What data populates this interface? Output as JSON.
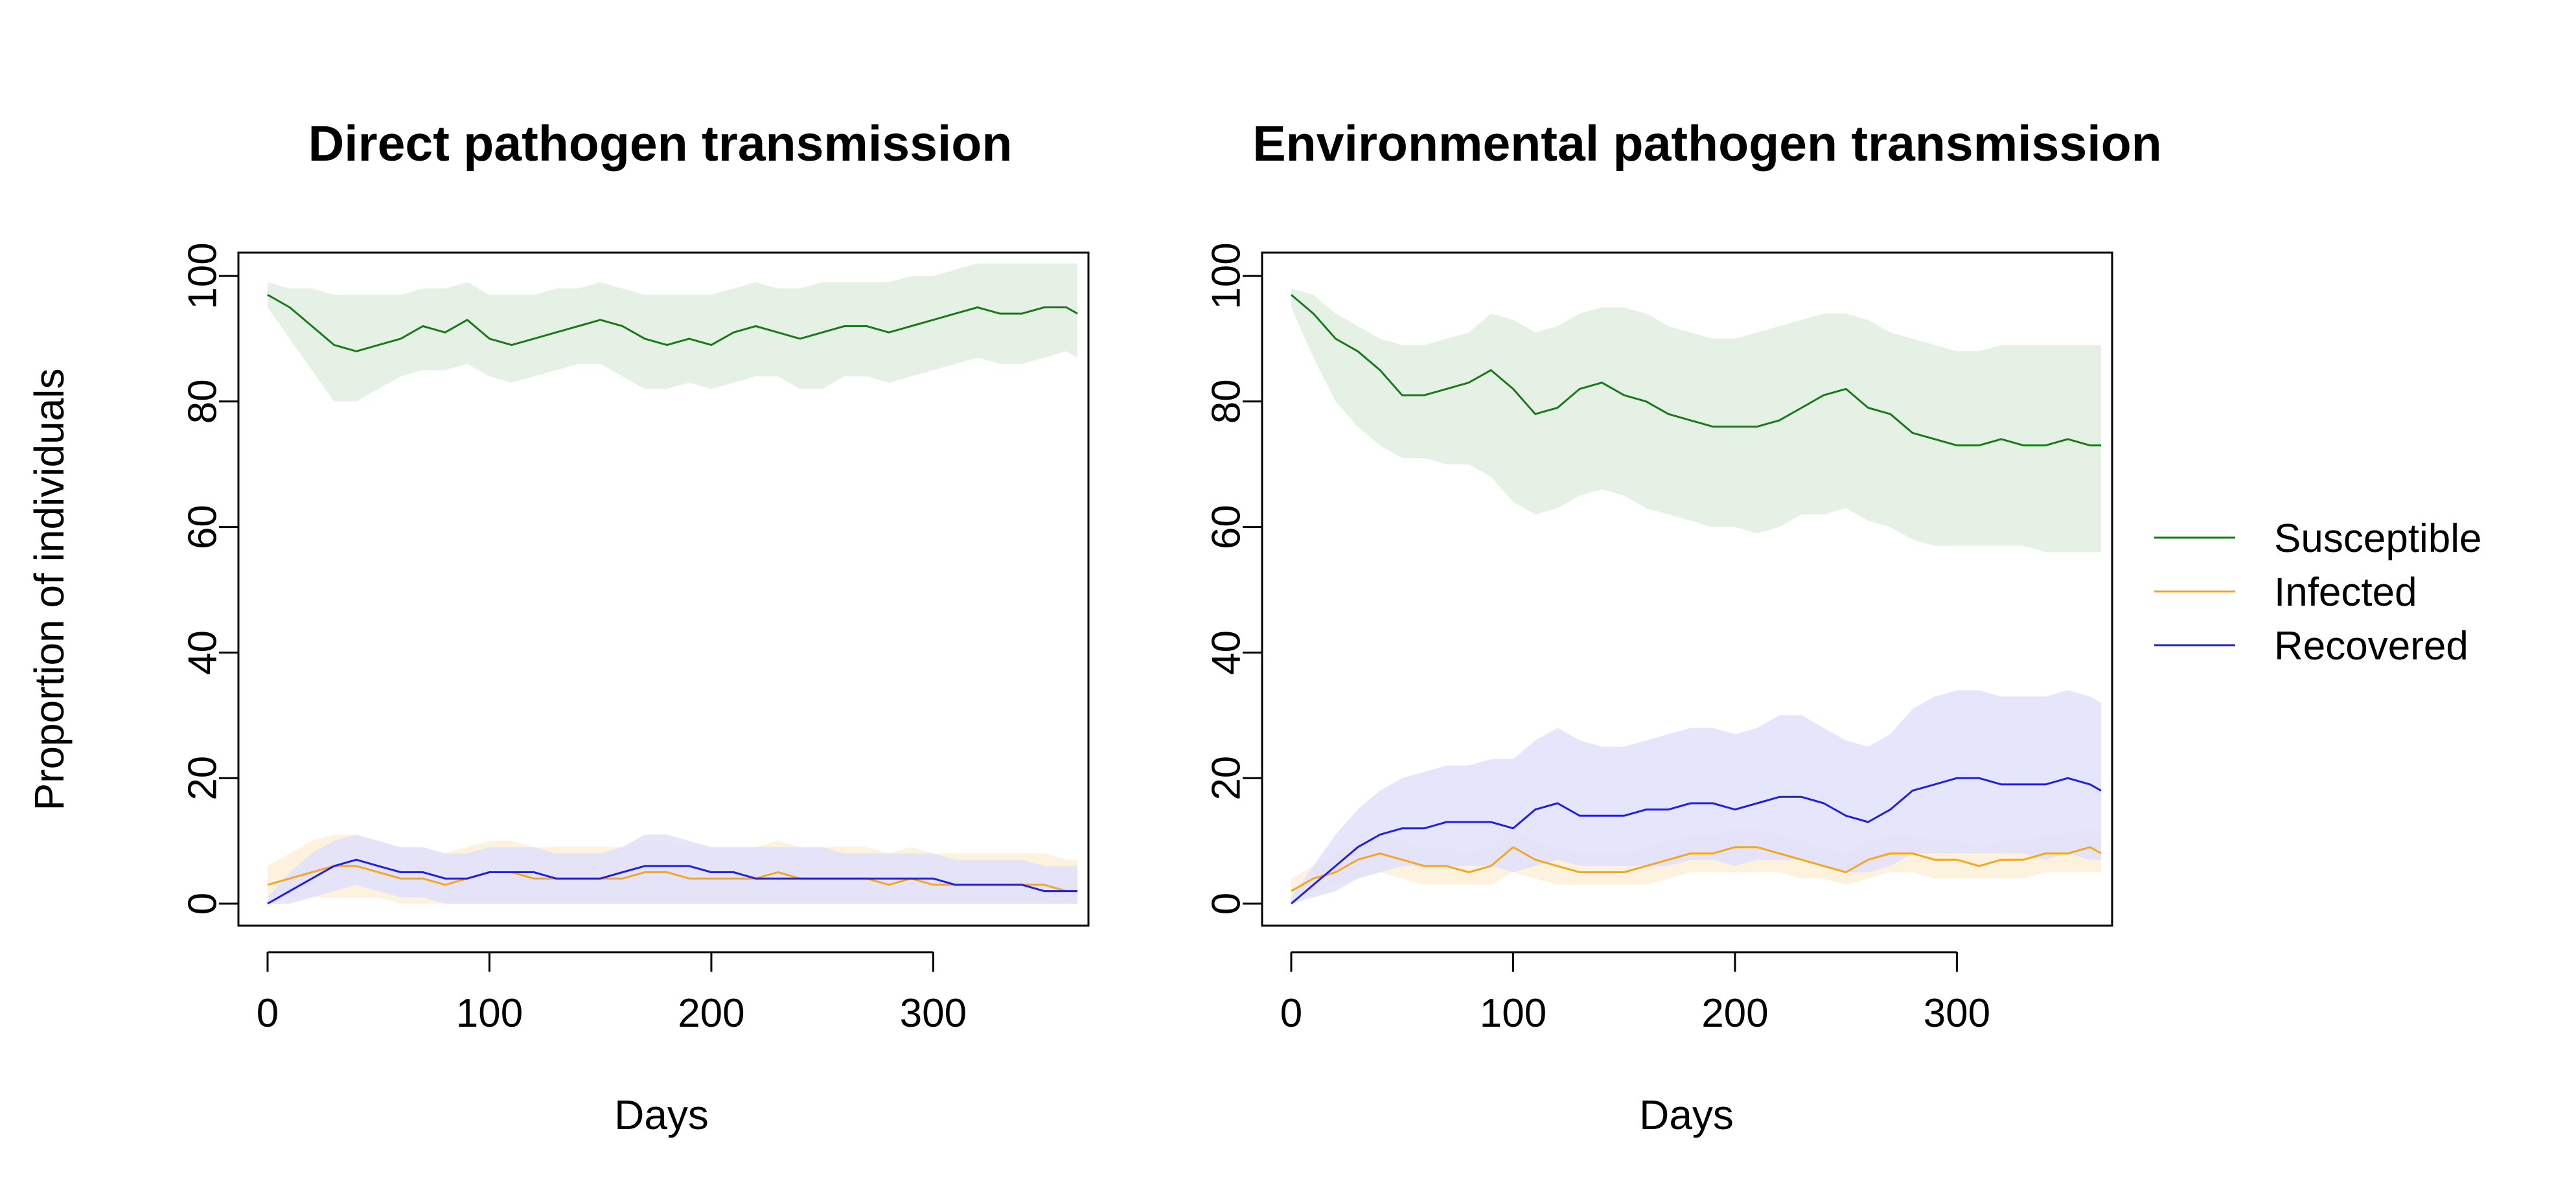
{
  "chart_data": [
    {
      "type": "line",
      "title": "Direct pathogen transmission",
      "xlabel": "Days",
      "ylabel": "Proportion of individuals",
      "xlim": [
        0,
        365
      ],
      "ylim": [
        0,
        100
      ],
      "xticks": [
        "0",
        "100",
        "200",
        "300"
      ],
      "yticks": [
        "0",
        "20",
        "40",
        "60",
        "80",
        "100"
      ],
      "bands": "shaded range around each series line",
      "series": [
        {
          "name": "Susceptible",
          "color": "#1a7a1a",
          "band_color": "#e2efe2",
          "x": [
            0,
            10,
            20,
            30,
            40,
            50,
            60,
            70,
            80,
            90,
            100,
            110,
            120,
            130,
            140,
            150,
            160,
            170,
            180,
            190,
            200,
            210,
            220,
            230,
            240,
            250,
            260,
            270,
            280,
            290,
            300,
            310,
            320,
            330,
            340,
            350,
            360,
            365
          ],
          "y": [
            97,
            95,
            92,
            89,
            88,
            89,
            90,
            92,
            91,
            93,
            90,
            89,
            90,
            91,
            92,
            93,
            92,
            90,
            89,
            90,
            89,
            91,
            92,
            91,
            90,
            91,
            92,
            92,
            91,
            92,
            93,
            94,
            95,
            94,
            94,
            95,
            95,
            94
          ],
          "lower": [
            95,
            90,
            85,
            80,
            80,
            82,
            84,
            85,
            85,
            86,
            84,
            83,
            84,
            85,
            86,
            86,
            84,
            82,
            82,
            83,
            82,
            83,
            84,
            84,
            82,
            82,
            84,
            84,
            83,
            84,
            85,
            86,
            87,
            86,
            86,
            87,
            88,
            87
          ],
          "upper": [
            99,
            98,
            98,
            97,
            97,
            97,
            97,
            98,
            98,
            99,
            97,
            97,
            97,
            98,
            98,
            99,
            98,
            97,
            97,
            97,
            97,
            98,
            99,
            98,
            98,
            99,
            99,
            99,
            99,
            100,
            100,
            101,
            102,
            102,
            102,
            102,
            102,
            102
          ]
        },
        {
          "name": "Infected",
          "color": "#f5a623",
          "band_color": "#fdf0d8",
          "x": [
            0,
            10,
            20,
            30,
            40,
            50,
            60,
            70,
            80,
            90,
            100,
            110,
            120,
            130,
            140,
            150,
            160,
            170,
            180,
            190,
            200,
            210,
            220,
            230,
            240,
            250,
            260,
            270,
            280,
            290,
            300,
            310,
            320,
            330,
            340,
            350,
            360,
            365
          ],
          "y": [
            3,
            4,
            5,
            6,
            6,
            5,
            4,
            4,
            3,
            4,
            5,
            5,
            4,
            4,
            4,
            4,
            4,
            5,
            5,
            4,
            4,
            4,
            4,
            5,
            4,
            4,
            4,
            4,
            3,
            4,
            3,
            3,
            3,
            3,
            3,
            3,
            2,
            2
          ],
          "lower": [
            1,
            1,
            1,
            1,
            1,
            1,
            0,
            0,
            0,
            0,
            0,
            0,
            0,
            0,
            0,
            0,
            0,
            0,
            0,
            0,
            0,
            0,
            0,
            0,
            0,
            0,
            0,
            0,
            0,
            0,
            0,
            0,
            0,
            0,
            0,
            0,
            0,
            0
          ],
          "upper": [
            6,
            8,
            10,
            11,
            11,
            10,
            9,
            9,
            8,
            9,
            10,
            10,
            9,
            9,
            9,
            9,
            9,
            10,
            10,
            9,
            9,
            9,
            9,
            10,
            9,
            9,
            9,
            9,
            8,
            9,
            8,
            8,
            8,
            8,
            8,
            8,
            7,
            7
          ]
        },
        {
          "name": "Recovered",
          "color": "#1f1fe6",
          "band_color": "#e0e0fc",
          "x": [
            0,
            10,
            20,
            30,
            40,
            50,
            60,
            70,
            80,
            90,
            100,
            110,
            120,
            130,
            140,
            150,
            160,
            170,
            180,
            190,
            200,
            210,
            220,
            230,
            240,
            250,
            260,
            270,
            280,
            290,
            300,
            310,
            320,
            330,
            340,
            350,
            360,
            365
          ],
          "y": [
            0,
            2,
            4,
            6,
            7,
            6,
            5,
            5,
            4,
            4,
            5,
            5,
            5,
            4,
            4,
            4,
            5,
            6,
            6,
            6,
            5,
            5,
            4,
            4,
            4,
            4,
            4,
            4,
            4,
            4,
            4,
            3,
            3,
            3,
            3,
            2,
            2,
            2
          ],
          "lower": [
            0,
            0,
            1,
            2,
            3,
            2,
            1,
            1,
            0,
            0,
            0,
            0,
            0,
            0,
            0,
            0,
            0,
            0,
            0,
            0,
            0,
            0,
            0,
            0,
            0,
            0,
            0,
            0,
            0,
            0,
            0,
            0,
            0,
            0,
            0,
            0,
            0,
            0
          ],
          "upper": [
            1,
            5,
            8,
            10,
            11,
            10,
            9,
            9,
            8,
            8,
            9,
            9,
            9,
            8,
            8,
            8,
            9,
            11,
            11,
            10,
            9,
            9,
            9,
            9,
            9,
            9,
            8,
            8,
            8,
            8,
            8,
            7,
            7,
            7,
            7,
            6,
            6,
            6
          ]
        }
      ]
    },
    {
      "type": "line",
      "title": "Environmental pathogen transmission",
      "xlabel": "Days",
      "ylabel": "",
      "xlim": [
        0,
        365
      ],
      "ylim": [
        0,
        100
      ],
      "xticks": [
        "0",
        "100",
        "200",
        "300"
      ],
      "yticks": [
        "0",
        "20",
        "40",
        "60",
        "80",
        "100"
      ],
      "bands": "shaded range around each series line",
      "series": [
        {
          "name": "Susceptible",
          "color": "#1a7a1a",
          "band_color": "#e2efe2",
          "x": [
            0,
            10,
            20,
            30,
            40,
            50,
            60,
            70,
            80,
            90,
            100,
            110,
            120,
            130,
            140,
            150,
            160,
            170,
            180,
            190,
            200,
            210,
            220,
            230,
            240,
            250,
            260,
            270,
            280,
            290,
            300,
            310,
            320,
            330,
            340,
            350,
            360,
            365
          ],
          "y": [
            97,
            94,
            90,
            88,
            85,
            81,
            81,
            82,
            83,
            85,
            82,
            78,
            79,
            82,
            83,
            81,
            80,
            78,
            77,
            76,
            76,
            76,
            77,
            79,
            81,
            82,
            79,
            78,
            75,
            74,
            73,
            73,
            74,
            73,
            73,
            74,
            73,
            73
          ],
          "lower": [
            95,
            87,
            80,
            76,
            73,
            71,
            71,
            70,
            70,
            68,
            64,
            62,
            63,
            65,
            66,
            65,
            63,
            62,
            61,
            60,
            60,
            59,
            60,
            62,
            62,
            63,
            61,
            60,
            58,
            57,
            57,
            57,
            57,
            57,
            56,
            56,
            56,
            56
          ],
          "upper": [
            98,
            97,
            94,
            92,
            90,
            89,
            89,
            90,
            91,
            94,
            93,
            91,
            92,
            94,
            95,
            95,
            94,
            92,
            91,
            90,
            90,
            91,
            92,
            93,
            94,
            94,
            93,
            91,
            90,
            89,
            88,
            88,
            89,
            89,
            89,
            89,
            89,
            89
          ]
        },
        {
          "name": "Infected",
          "color": "#f5a623",
          "band_color": "#fdf0d8",
          "x": [
            0,
            10,
            20,
            30,
            40,
            50,
            60,
            70,
            80,
            90,
            100,
            110,
            120,
            130,
            140,
            150,
            160,
            170,
            180,
            190,
            200,
            210,
            220,
            230,
            240,
            250,
            260,
            270,
            280,
            290,
            300,
            310,
            320,
            330,
            340,
            350,
            360,
            365
          ],
          "y": [
            2,
            4,
            5,
            7,
            8,
            7,
            6,
            6,
            5,
            6,
            9,
            7,
            6,
            5,
            5,
            5,
            6,
            7,
            8,
            8,
            9,
            9,
            8,
            7,
            6,
            5,
            7,
            8,
            8,
            7,
            7,
            6,
            7,
            7,
            8,
            8,
            9,
            8
          ],
          "lower": [
            1,
            2,
            3,
            4,
            5,
            4,
            3,
            3,
            3,
            3,
            5,
            4,
            3,
            3,
            3,
            3,
            3,
            4,
            5,
            5,
            5,
            5,
            5,
            4,
            4,
            3,
            4,
            5,
            5,
            4,
            4,
            4,
            4,
            4,
            5,
            5,
            5,
            5
          ],
          "upper": [
            4,
            6,
            8,
            10,
            11,
            10,
            9,
            9,
            8,
            9,
            12,
            10,
            9,
            8,
            8,
            8,
            9,
            10,
            11,
            11,
            12,
            12,
            11,
            10,
            9,
            8,
            10,
            11,
            11,
            10,
            10,
            9,
            10,
            10,
            11,
            11,
            12,
            11
          ]
        },
        {
          "name": "Recovered",
          "color": "#1f1fe6",
          "band_color": "#e0e0fc",
          "x": [
            0,
            10,
            20,
            30,
            40,
            50,
            60,
            70,
            80,
            90,
            100,
            110,
            120,
            130,
            140,
            150,
            160,
            170,
            180,
            190,
            200,
            210,
            220,
            230,
            240,
            250,
            260,
            270,
            280,
            290,
            300,
            310,
            320,
            330,
            340,
            350,
            360,
            365
          ],
          "y": [
            0,
            3,
            6,
            9,
            11,
            12,
            12,
            13,
            13,
            13,
            12,
            15,
            16,
            14,
            14,
            14,
            15,
            15,
            16,
            16,
            15,
            16,
            17,
            17,
            16,
            14,
            13,
            15,
            18,
            19,
            20,
            20,
            19,
            19,
            19,
            20,
            19,
            18
          ],
          "lower": [
            0,
            1,
            2,
            4,
            5,
            6,
            6,
            6,
            6,
            6,
            5,
            6,
            7,
            6,
            6,
            6,
            6,
            6,
            7,
            7,
            6,
            7,
            7,
            7,
            6,
            5,
            5,
            6,
            8,
            8,
            8,
            8,
            8,
            8,
            7,
            8,
            7,
            7
          ],
          "upper": [
            1,
            6,
            11,
            15,
            18,
            20,
            21,
            22,
            22,
            23,
            23,
            26,
            28,
            26,
            25,
            25,
            26,
            27,
            28,
            28,
            27,
            28,
            30,
            30,
            28,
            26,
            25,
            27,
            31,
            33,
            34,
            34,
            33,
            33,
            33,
            34,
            33,
            32
          ]
        }
      ]
    }
  ],
  "legend": {
    "position": "right",
    "items": [
      {
        "label": "Susceptible",
        "color": "#1a7a1a"
      },
      {
        "label": "Infected",
        "color": "#f5a623"
      },
      {
        "label": "Recovered",
        "color": "#1f1fe6"
      }
    ]
  }
}
